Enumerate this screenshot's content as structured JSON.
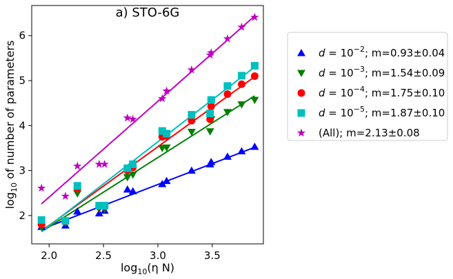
{
  "chart_data": {
    "type": "scatter",
    "title": "a) STO-6G",
    "xlabel": {
      "pre": "log",
      "sub": "10",
      "post": "(η N)"
    },
    "ylabel": {
      "pre": "log",
      "sub": "10",
      "post": " of number of parameters"
    },
    "xlim": [
      1.84,
      3.97
    ],
    "ylim": [
      1.37,
      6.67
    ],
    "xticks": [
      2.0,
      2.5,
      3.0,
      3.5
    ],
    "xtick_labels": [
      "2.0",
      "2.5",
      "3.0",
      "3.5"
    ],
    "yticks": [
      2,
      3,
      4,
      5,
      6
    ],
    "ytick_labels": [
      "2",
      "3",
      "4",
      "5",
      "6"
    ],
    "grid": false,
    "legend_position": "right-outside",
    "series": [
      {
        "legend": {
          "d": "d",
          "eq": " = 10",
          "exp": "−2",
          "tail": "; m=0.93±0.04"
        },
        "color": "#0000ff",
        "marker": "triangle-up",
        "fit": {
          "slope": 0.93,
          "intercept": -0.1,
          "x_range": [
            1.93,
            3.89
          ]
        },
        "x": [
          1.93,
          2.15,
          2.26,
          2.46,
          2.51,
          2.72,
          2.77,
          3.04,
          3.08,
          3.31,
          3.48,
          3.49,
          3.64,
          3.77,
          3.89
        ],
        "y": [
          1.75,
          1.78,
          2.09,
          2.05,
          2.11,
          2.58,
          2.54,
          2.7,
          2.77,
          3.0,
          3.14,
          3.19,
          3.31,
          3.43,
          3.53
        ]
      },
      {
        "legend": {
          "d": "d",
          "eq": " = 10",
          "exp": "−3",
          "tail": "; m=1.54±0.09"
        },
        "color": "#007f00",
        "marker": "triangle-down",
        "fit": {
          "slope": 1.54,
          "intercept": -1.33,
          "x_range": [
            1.93,
            3.89
          ]
        },
        "x": [
          1.93,
          2.15,
          2.26,
          2.46,
          2.51,
          2.72,
          2.77,
          3.04,
          3.08,
          3.31,
          3.48,
          3.49,
          3.64,
          3.77,
          3.89
        ],
        "y": [
          1.74,
          1.84,
          2.49,
          2.15,
          2.15,
          2.85,
          2.91,
          3.5,
          3.51,
          3.86,
          3.87,
          4.14,
          4.3,
          4.47,
          4.57
        ]
      },
      {
        "legend": {
          "d": "d",
          "eq": " = 10",
          "exp": "−4",
          "tail": "; m=1.75±0.10"
        },
        "color": "#ff0000",
        "marker": "circle",
        "fit": {
          "slope": 1.75,
          "intercept": -1.72,
          "x_range": [
            1.93,
            3.89
          ]
        },
        "x": [
          1.93,
          2.15,
          2.26,
          2.46,
          2.51,
          2.72,
          2.77,
          3.04,
          3.08,
          3.31,
          3.48,
          3.49,
          3.64,
          3.77,
          3.89
        ],
        "y": [
          1.8,
          1.86,
          2.6,
          2.2,
          2.2,
          3.0,
          3.07,
          3.75,
          3.77,
          4.11,
          4.14,
          4.43,
          4.7,
          4.92,
          5.1
        ]
      },
      {
        "legend": {
          "d": "d",
          "eq": " = 10",
          "exp": "−5",
          "tail": "; m=1.87±0.10"
        },
        "color": "#00bfbf",
        "marker": "square",
        "fit": {
          "slope": 1.87,
          "intercept": -1.97,
          "x_range": [
            1.93,
            3.89
          ]
        },
        "x": [
          1.93,
          2.15,
          2.26,
          2.46,
          2.51,
          2.72,
          2.77,
          3.04,
          3.08,
          3.31,
          3.48,
          3.49,
          3.64,
          3.77,
          3.89
        ],
        "y": [
          1.9,
          1.88,
          2.66,
          2.22,
          2.22,
          3.05,
          3.14,
          3.88,
          3.82,
          4.24,
          4.27,
          4.57,
          4.88,
          5.11,
          5.33
        ]
      },
      {
        "legend": {
          "text": "(All); m=2.13±0.08"
        },
        "color": "#bf00bf",
        "marker": "star",
        "fit": {
          "slope": 2.13,
          "intercept": -1.85,
          "x_range": [
            1.93,
            3.89
          ]
        },
        "x": [
          1.93,
          2.15,
          2.26,
          2.46,
          2.51,
          2.72,
          2.77,
          3.04,
          3.08,
          3.31,
          3.48,
          3.49,
          3.64,
          3.77,
          3.89
        ],
        "y": [
          2.61,
          2.43,
          3.1,
          3.14,
          3.14,
          4.17,
          4.14,
          4.6,
          4.77,
          5.24,
          5.57,
          5.62,
          5.93,
          6.19,
          6.41
        ]
      }
    ]
  }
}
